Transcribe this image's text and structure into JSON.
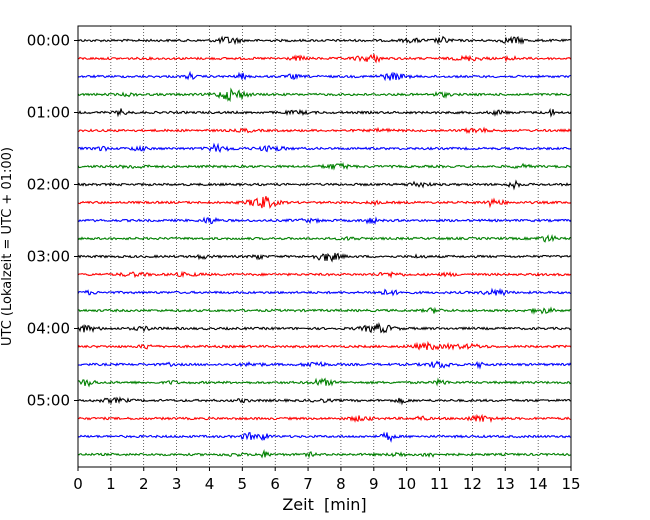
{
  "chart_data": {
    "type": "line",
    "title": "",
    "xlabel": "Zeit  [min]",
    "ylabel": "UTC (Lokalzeit = UTC + 01:00)",
    "xlim": [
      0,
      15
    ],
    "x_ticks": [
      "0",
      "1",
      "2",
      "3",
      "4",
      "5",
      "6",
      "7",
      "8",
      "9",
      "10",
      "11",
      "12",
      "13",
      "14",
      "15"
    ],
    "y_ticks": [
      "00:00",
      "01:00",
      "02:00",
      "03:00",
      "04:00",
      "05:00"
    ],
    "grid": "vertical-dotted",
    "trace_interval_min": 15,
    "trace_count": 24,
    "trace_colors": [
      "#000000",
      "#ff0000",
      "#0000ff",
      "#008000"
    ]
  }
}
